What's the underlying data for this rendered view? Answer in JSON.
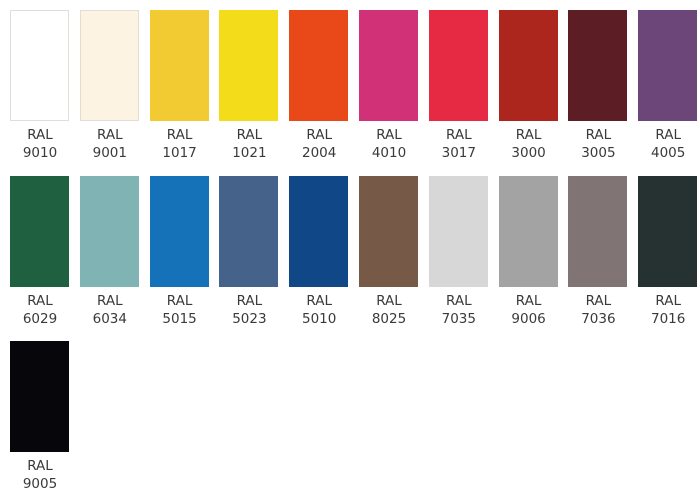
{
  "swatches": [
    {
      "prefix": "RAL",
      "code": "9010",
      "color": "#ffffff"
    },
    {
      "prefix": "RAL",
      "code": "9001",
      "color": "#fcf3e3"
    },
    {
      "prefix": "RAL",
      "code": "1017",
      "color": "#f2ca31"
    },
    {
      "prefix": "RAL",
      "code": "1021",
      "color": "#f3dc1a"
    },
    {
      "prefix": "RAL",
      "code": "2004",
      "color": "#e94818"
    },
    {
      "prefix": "RAL",
      "code": "4010",
      "color": "#d13277"
    },
    {
      "prefix": "RAL",
      "code": "3017",
      "color": "#e72a44"
    },
    {
      "prefix": "RAL",
      "code": "3000",
      "color": "#ad261e"
    },
    {
      "prefix": "RAL",
      "code": "3005",
      "color": "#5c1e24"
    },
    {
      "prefix": "RAL",
      "code": "4005",
      "color": "#6c4579"
    },
    {
      "prefix": "RAL",
      "code": "6029",
      "color": "#1e6040"
    },
    {
      "prefix": "RAL",
      "code": "6034",
      "color": "#80b4b4"
    },
    {
      "prefix": "RAL",
      "code": "5015",
      "color": "#1672b8"
    },
    {
      "prefix": "RAL",
      "code": "5023",
      "color": "#45638a"
    },
    {
      "prefix": "RAL",
      "code": "5010",
      "color": "#104887"
    },
    {
      "prefix": "RAL",
      "code": "8025",
      "color": "#765946"
    },
    {
      "prefix": "RAL",
      "code": "7035",
      "color": "#d7d7d7"
    },
    {
      "prefix": "RAL",
      "code": "9006",
      "color": "#a3a3a3"
    },
    {
      "prefix": "RAL",
      "code": "7036",
      "color": "#807475"
    },
    {
      "prefix": "RAL",
      "code": "7016",
      "color": "#263132"
    },
    {
      "prefix": "RAL",
      "code": "9005",
      "color": "#07070b"
    }
  ]
}
